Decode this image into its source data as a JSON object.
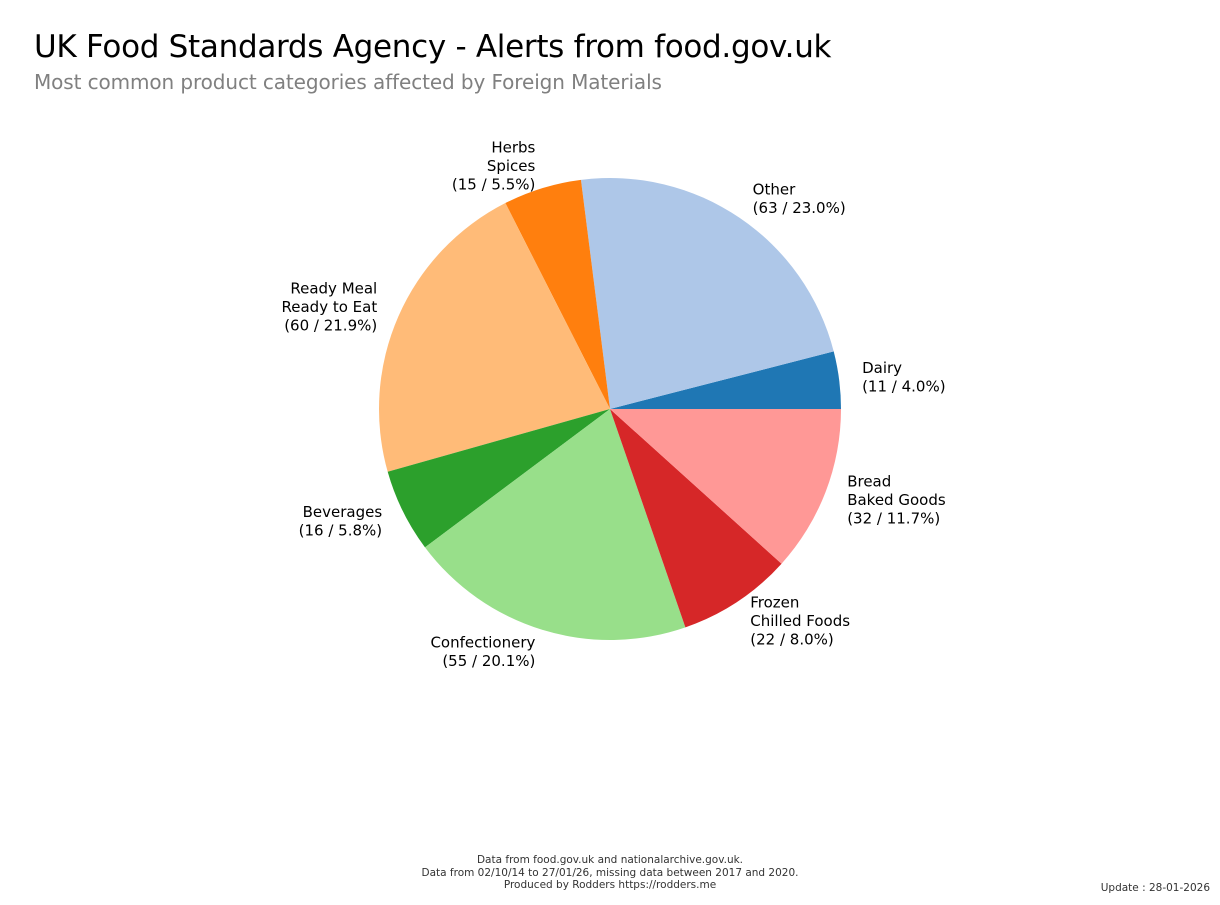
{
  "header": {
    "title": "UK Food Standards Agency - Alerts from food.gov.uk",
    "subtitle": "Most common product categories affected by Foreign Materials"
  },
  "chart_data": {
    "type": "pie",
    "title": "UK Food Standards Agency - Alerts from food.gov.uk",
    "subtitle": "Most common product categories affected by Foreign Materials",
    "start_angle_deg": 0,
    "direction": "counterclockwise",
    "slices": [
      {
        "name": "Dairy",
        "label_lines": [
          "Dairy",
          "(11 / 4.0%)"
        ],
        "value": 11,
        "percent": 4.0,
        "color": "#1f77b4"
      },
      {
        "name": "Other",
        "label_lines": [
          "Other",
          "(63 / 23.0%)"
        ],
        "value": 63,
        "percent": 23.0,
        "color": "#aec7e8"
      },
      {
        "name": "Herbs Spices",
        "label_lines": [
          "Herbs",
          "Spices",
          "(15 / 5.5%)"
        ],
        "value": 15,
        "percent": 5.5,
        "color": "#ff7f0e"
      },
      {
        "name": "Ready Meal Ready to Eat",
        "label_lines": [
          "Ready Meal",
          "Ready to Eat",
          "(60 / 21.9%)"
        ],
        "value": 60,
        "percent": 21.9,
        "color": "#ffbb78"
      },
      {
        "name": "Beverages",
        "label_lines": [
          "Beverages",
          "(16 / 5.8%)"
        ],
        "value": 16,
        "percent": 5.8,
        "color": "#2ca02c"
      },
      {
        "name": "Confectionery",
        "label_lines": [
          "Confectionery",
          "(55 / 20.1%)"
        ],
        "value": 55,
        "percent": 20.1,
        "color": "#98df8a"
      },
      {
        "name": "Frozen Chilled Foods",
        "label_lines": [
          "Frozen",
          "Chilled Foods",
          "(22 / 8.0%)"
        ],
        "value": 22,
        "percent": 8.0,
        "color": "#d62728"
      },
      {
        "name": "Bread Baked Goods",
        "label_lines": [
          "Bread",
          "Baked Goods",
          "(32 / 11.7%)"
        ],
        "value": 32,
        "percent": 11.7,
        "color": "#ff9896"
      }
    ]
  },
  "footer": {
    "line1": "Data from food.gov.uk and nationalarchive.gov.uk.",
    "line2": "Data from 02/10/14 to 27/01/26, missing data between 2017 and 2020.",
    "line3": "Produced by Rodders https://rodders.me",
    "update": "Update : 28-01-2026"
  }
}
